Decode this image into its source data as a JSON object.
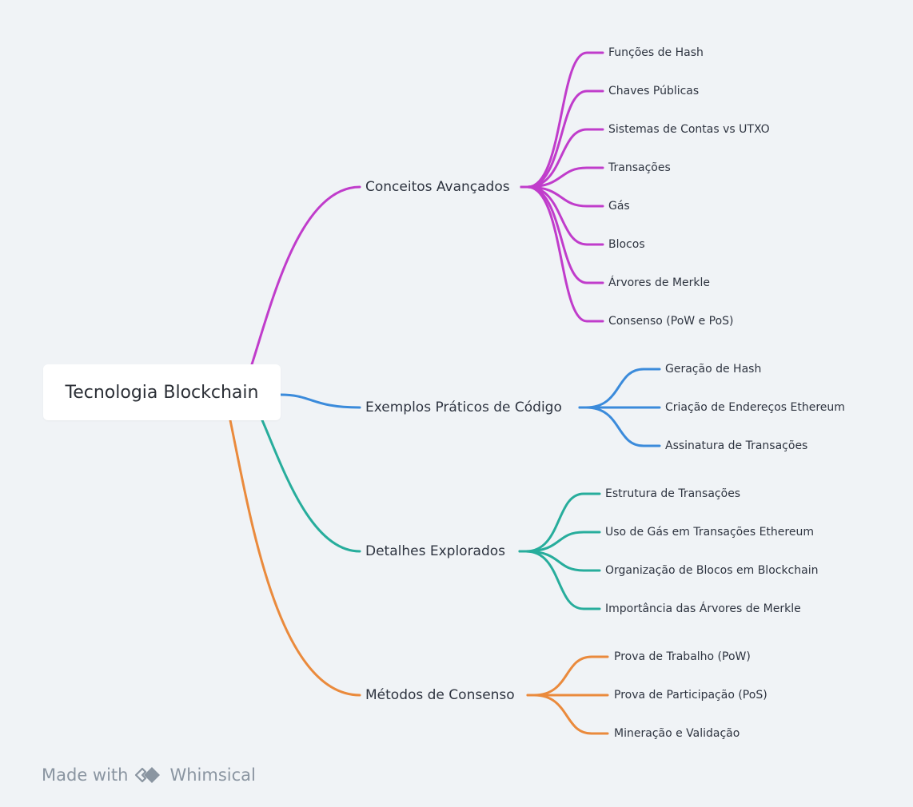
{
  "root": {
    "label": "Tecnologia Blockchain"
  },
  "branches": [
    {
      "label": "Conceitos Avançados",
      "color": "#c03ccb",
      "children": [
        "Funções de Hash",
        "Chaves Públicas",
        "Sistemas de Contas vs UTXO",
        "Transações",
        "Gás",
        "Blocos",
        "Árvores de Merkle",
        "Consenso (PoW e PoS)"
      ]
    },
    {
      "label": "Exemplos Práticos de Código",
      "color": "#3b8bdb",
      "children": [
        "Geração de Hash",
        "Criação de Endereços Ethereum",
        "Assinatura de Transações"
      ]
    },
    {
      "label": "Detalhes Explorados",
      "color": "#27ad9c",
      "children": [
        "Estrutura de Transações",
        "Uso de Gás em Transações Ethereum",
        "Organização de Blocos em Blockchain",
        "Importância das Árvores de Merkle"
      ]
    },
    {
      "label": "Métodos de Consenso",
      "color": "#ea8a3c",
      "children": [
        "Prova de Trabalho (PoW)",
        "Prova de Participação (PoS)",
        "Mineração e Validação"
      ]
    }
  ],
  "footer": {
    "made_with": "Made with",
    "brand": "Whimsical",
    "logo_icon": "whimsical-logo-icon"
  }
}
